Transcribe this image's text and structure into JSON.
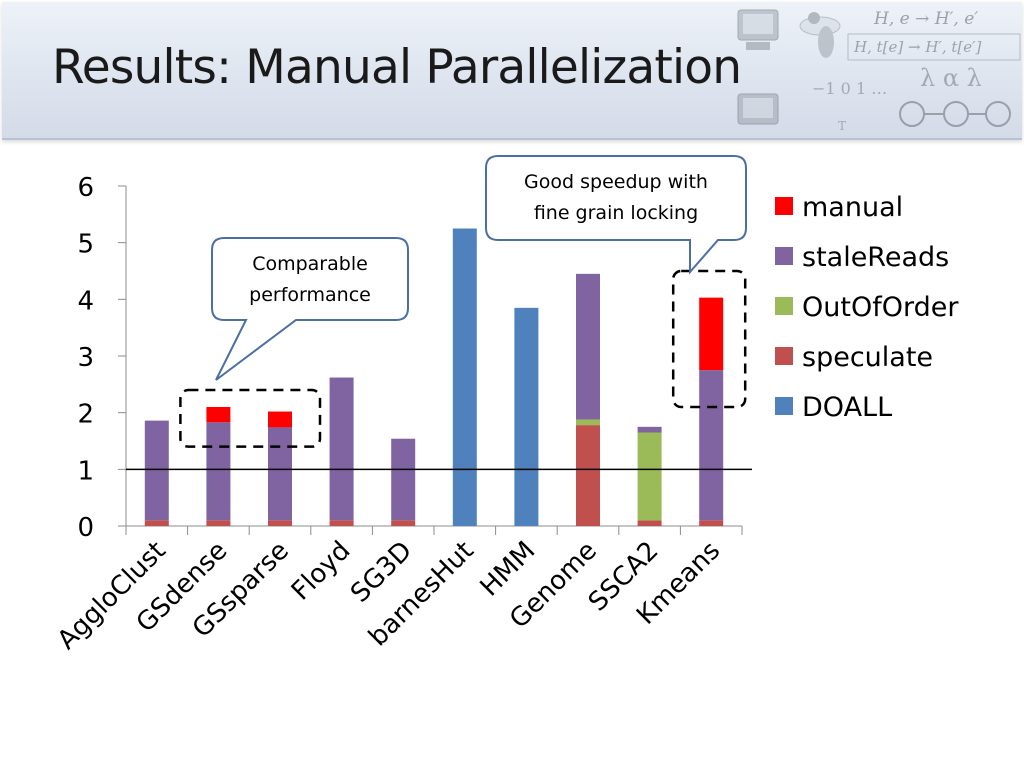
{
  "slide": {
    "title": "Results: Manual Parallelization"
  },
  "decoration": {
    "formula_line1": "H, e → H′, e′",
    "formula_line2": "H, t[e] → H′, t[e′]",
    "sequence": "−1  0  1 …",
    "glyphs": "λ α λ",
    "small_label": "T"
  },
  "colors": {
    "manual": "#ff0000",
    "staleReads": "#8064a2",
    "OutOfOrder": "#9bbb59",
    "speculate": "#c0504d",
    "DOALL": "#4f81bd"
  },
  "chart_data": {
    "type": "bar",
    "stacked": true,
    "categories": [
      "AggloClust",
      "GSdense",
      "GSsparse",
      "Floyd",
      "SG3D",
      "barnesHut",
      "HMM",
      "Genome",
      "SSCA2",
      "Kmeans"
    ],
    "series": [
      {
        "name": "DOALL",
        "values": [
          0,
          0,
          0,
          0,
          0,
          5.25,
          3.85,
          0,
          0,
          0
        ]
      },
      {
        "name": "speculate",
        "values": [
          0.1,
          0.1,
          0.1,
          0.1,
          0.1,
          0,
          0,
          1.78,
          0.1,
          0.1
        ]
      },
      {
        "name": "OutOfOrder",
        "values": [
          0,
          0,
          0,
          0,
          0,
          0,
          0,
          0.1,
          1.55,
          0
        ]
      },
      {
        "name": "staleReads",
        "values": [
          1.76,
          1.73,
          1.64,
          2.52,
          1.44,
          0,
          0,
          2.57,
          0.1,
          2.65
        ]
      },
      {
        "name": "manual",
        "values": [
          0,
          0.27,
          0.28,
          0,
          0,
          0,
          0,
          0,
          0,
          1.28
        ]
      }
    ],
    "legend_order": [
      "manual",
      "staleReads",
      "OutOfOrder",
      "speculate",
      "DOALL"
    ],
    "legend_position": "right",
    "ylim": [
      0,
      6
    ],
    "yticks": [
      0,
      1,
      2,
      3,
      4,
      5,
      6
    ],
    "reference_line": 1,
    "xlabel": "",
    "ylabel": "",
    "title": "",
    "annotations": [
      {
        "text_lines": [
          "Comparable",
          "performance"
        ],
        "highlights": [
          "GSdense",
          "GSsparse"
        ],
        "highlight_y": [
          1.4,
          2.4
        ]
      },
      {
        "text_lines": [
          "Good speedup with",
          "fine grain locking"
        ],
        "highlights": [
          "Kmeans"
        ],
        "highlight_y": [
          2.1,
          4.5
        ]
      }
    ]
  }
}
